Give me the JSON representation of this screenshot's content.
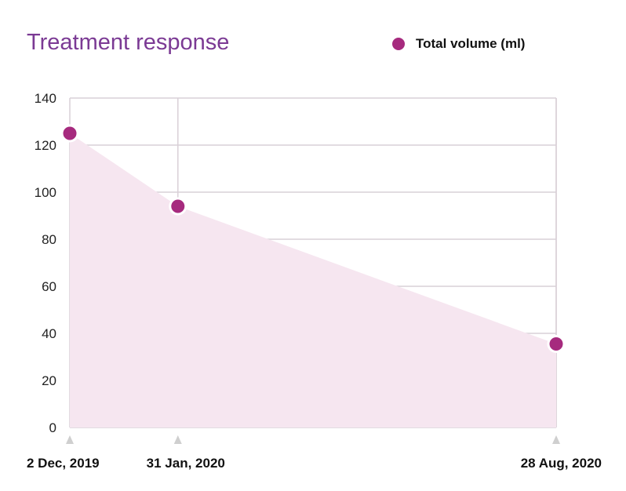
{
  "colors": {
    "series": "#a62a7e",
    "area": "#f6e6f0",
    "grid": "#d9d0d7",
    "title": "#7b3a94",
    "marker": "#cfcfcf"
  },
  "chart_data": {
    "type": "area",
    "title": "Treatment response",
    "xlabel": "",
    "ylabel": "",
    "x": [
      "2 Dec, 2019",
      "31 Jan, 2020",
      "28 Aug, 2020"
    ],
    "x_days": [
      0,
      60,
      270
    ],
    "series": [
      {
        "name": "Total volume (ml)",
        "values": [
          125,
          94,
          35.5
        ]
      }
    ],
    "ylim": [
      0,
      140
    ],
    "yticks": [
      0,
      20,
      40,
      60,
      80,
      100,
      120,
      140
    ],
    "grid": true,
    "legend": "top-right"
  }
}
